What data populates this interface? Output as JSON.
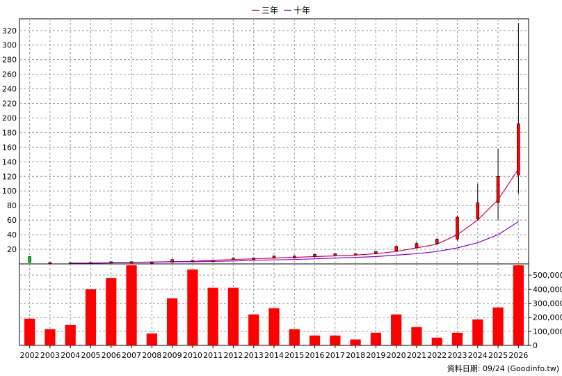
{
  "chart_data": [
    {
      "type": "candlestick",
      "panel": "price",
      "legend": [
        {
          "name": "三年",
          "color": "#cc0066"
        },
        {
          "name": "十年",
          "color": "#8800cc"
        }
      ],
      "legend_position": "top-center",
      "grid": true,
      "ylim": [
        0,
        336
      ],
      "yticks": [
        20,
        40,
        60,
        80,
        100,
        120,
        140,
        160,
        180,
        200,
        220,
        240,
        260,
        280,
        300,
        320
      ],
      "categories": [
        "2002",
        "2003",
        "2004",
        "2005",
        "2006",
        "2007",
        "2008",
        "2009",
        "2010",
        "2011",
        "2012",
        "2013",
        "2014",
        "2015",
        "2016",
        "2017",
        "2018",
        "2019",
        "2020",
        "2021",
        "2022",
        "2023",
        "2024",
        "2025",
        "2026"
      ],
      "candles": [
        {
          "open": 2,
          "high": 10,
          "low": 2,
          "close": 10,
          "up": false
        },
        {
          "open": 1,
          "high": 2,
          "low": 1,
          "close": 2,
          "up": true
        },
        {
          "open": 1,
          "high": 1.5,
          "low": 1,
          "close": 1.5,
          "up": true
        },
        {
          "open": 1,
          "high": 2,
          "low": 1,
          "close": 2,
          "up": true
        },
        {
          "open": 2,
          "high": 3,
          "low": 2,
          "close": 3,
          "up": true
        },
        {
          "open": 2,
          "high": 3,
          "low": 2,
          "close": 3,
          "up": true
        },
        {
          "open": 1.5,
          "high": 2,
          "low": 1.5,
          "close": 2,
          "up": true
        },
        {
          "open": 2,
          "high": 6,
          "low": 2,
          "close": 6,
          "up": true
        },
        {
          "open": 3,
          "high": 5,
          "low": 3,
          "close": 5,
          "up": true
        },
        {
          "open": 3,
          "high": 5,
          "low": 3,
          "close": 5,
          "up": true
        },
        {
          "open": 6,
          "high": 8,
          "low": 6,
          "close": 8,
          "up": true
        },
        {
          "open": 6,
          "high": 8,
          "low": 6,
          "close": 8,
          "up": true
        },
        {
          "open": 8,
          "high": 11,
          "low": 8,
          "close": 11,
          "up": true
        },
        {
          "open": 8,
          "high": 11,
          "low": 8,
          "close": 11,
          "up": true
        },
        {
          "open": 10,
          "high": 13,
          "low": 10,
          "close": 13,
          "up": true
        },
        {
          "open": 12,
          "high": 14,
          "low": 12,
          "close": 14,
          "up": true
        },
        {
          "open": 12,
          "high": 14,
          "low": 12,
          "close": 14,
          "up": true
        },
        {
          "open": 14,
          "high": 17,
          "low": 14,
          "close": 17,
          "up": true
        },
        {
          "open": 18,
          "high": 25,
          "low": 18,
          "close": 24,
          "up": true
        },
        {
          "open": 22,
          "high": 30,
          "low": 22,
          "close": 28,
          "up": true
        },
        {
          "open": 28,
          "high": 35,
          "low": 26,
          "close": 34,
          "up": true
        },
        {
          "open": 34,
          "high": 66,
          "low": 32,
          "close": 64,
          "up": true
        },
        {
          "open": 62,
          "high": 110,
          "low": 60,
          "close": 84,
          "up": true
        },
        {
          "open": 84,
          "high": 158,
          "low": 60,
          "close": 120,
          "up": true
        },
        {
          "open": 122,
          "high": 330,
          "low": 96,
          "close": 192,
          "up": true
        }
      ],
      "series": [
        {
          "name": "三年",
          "color": "#cc0066",
          "values": [
            null,
            null,
            1,
            1,
            1.5,
            2,
            2.5,
            3,
            3.5,
            5,
            6,
            7,
            8,
            9,
            10,
            11,
            12,
            14,
            17,
            22,
            27,
            40,
            60,
            88,
            130
          ]
        },
        {
          "name": "十年",
          "color": "#8800cc",
          "values": [
            null,
            null,
            1,
            1,
            1.5,
            2,
            2.5,
            3,
            3,
            3.5,
            4,
            5,
            5.5,
            6,
            7,
            8,
            9,
            10,
            12,
            14,
            17,
            22,
            29,
            40,
            58
          ]
        }
      ]
    },
    {
      "type": "bar",
      "panel": "volume",
      "ylim": [
        0,
        580000
      ],
      "yticks": [
        0,
        100000,
        200000,
        300000,
        400000,
        500000
      ],
      "ytick_labels": [
        "0",
        "100,000",
        "200,000",
        "300,000",
        "400,000",
        "500,000"
      ],
      "categories": [
        "2002",
        "2003",
        "2004",
        "2005",
        "2006",
        "2007",
        "2008",
        "2009",
        "2010",
        "2011",
        "2012",
        "2013",
        "2014",
        "2015",
        "2016",
        "2017",
        "2018",
        "2019",
        "2020",
        "2021",
        "2022",
        "2023",
        "2024",
        "2025",
        "2026"
      ],
      "values": [
        190000,
        115000,
        145000,
        400000,
        480000,
        570000,
        85000,
        335000,
        540000,
        410000,
        410000,
        220000,
        265000,
        115000,
        70000,
        70000,
        42000,
        90000,
        220000,
        130000,
        55000,
        90000,
        185000,
        270000,
        570000
      ],
      "color": "#ff0000"
    }
  ],
  "footer": "資料日期: 09/24  (Goodinfo.tw)"
}
